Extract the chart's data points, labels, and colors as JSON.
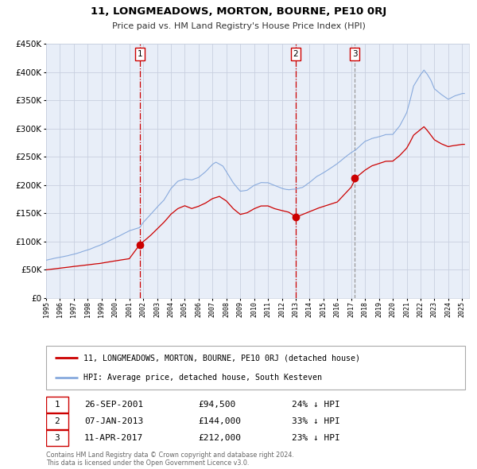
{
  "title": "11, LONGMEADOWS, MORTON, BOURNE, PE10 0RJ",
  "subtitle": "Price paid vs. HM Land Registry's House Price Index (HPI)",
  "background_color": "#ffffff",
  "plot_bg_color": "#e8eef8",
  "grid_color": "#c8d0e0",
  "ylim": [
    0,
    450000
  ],
  "yticks": [
    0,
    50000,
    100000,
    150000,
    200000,
    250000,
    300000,
    350000,
    400000,
    450000
  ],
  "xstart": 1995,
  "xend": 2025,
  "sale_points": [
    {
      "date": "2001-09-26",
      "price": 94500,
      "label": "1",
      "vline_color": "#cc0000",
      "vline_style": "-."
    },
    {
      "date": "2013-01-07",
      "price": 144000,
      "label": "2",
      "vline_color": "#cc0000",
      "vline_style": "-."
    },
    {
      "date": "2017-04-11",
      "price": 212000,
      "label": "3",
      "vline_color": "#888888",
      "vline_style": "--"
    }
  ],
  "sale_color": "#cc0000",
  "hpi_color": "#88aadd",
  "legend_label_sale": "11, LONGMEADOWS, MORTON, BOURNE, PE10 0RJ (detached house)",
  "legend_label_hpi": "HPI: Average price, detached house, South Kesteven",
  "table_rows": [
    {
      "num": "1",
      "date": "26-SEP-2001",
      "price": "£94,500",
      "change": "24% ↓ HPI"
    },
    {
      "num": "2",
      "date": "07-JAN-2013",
      "price": "£144,000",
      "change": "33% ↓ HPI"
    },
    {
      "num": "3",
      "date": "11-APR-2017",
      "price": "£212,000",
      "change": "23% ↓ HPI"
    }
  ],
  "footer_text": "Contains HM Land Registry data © Crown copyright and database right 2024.\nThis data is licensed under the Open Government Licence v3.0."
}
